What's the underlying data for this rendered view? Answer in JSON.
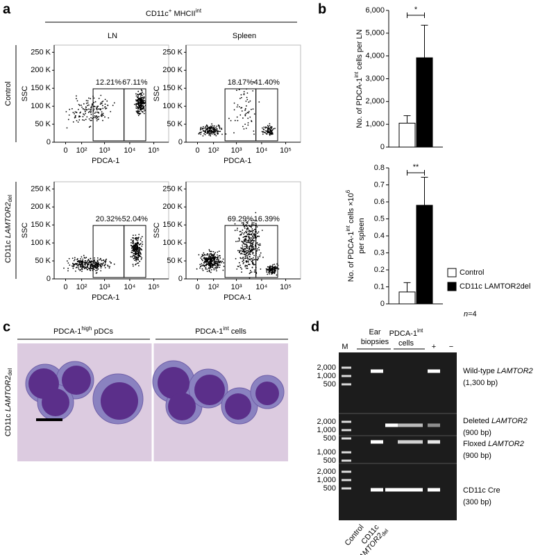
{
  "panel_a": {
    "letter": "a",
    "header": [
      {
        "t": "CD11c"
      },
      {
        "sup": "+"
      },
      {
        "t": " MHCII"
      },
      {
        "sup": "int"
      }
    ],
    "columns": [
      "LN",
      "Spleen"
    ],
    "rows": [
      [
        {
          "t": "Control"
        }
      ],
      [
        {
          "t": "CD11c "
        },
        {
          "i": "LAMTOR2"
        },
        {
          "sub": "del"
        }
      ]
    ],
    "ylabel": "SSC",
    "xlabel": "PDCA-1",
    "yticks": [
      "0",
      "50 K",
      "100 K",
      "150 K",
      "200 K",
      "250 K"
    ],
    "xticks": [
      "0",
      "10²",
      "10³",
      "10⁴",
      "10⁵"
    ],
    "gates": [
      [
        "12.21%",
        "67.11%"
      ],
      [
        "18.17%",
        "41.40%"
      ],
      [
        "20.32%",
        "52.04%"
      ],
      [
        "69.29%",
        "16.39%"
      ]
    ]
  },
  "panel_b": {
    "letter": "b",
    "note": [
      {
        "i": "n"
      },
      {
        "t": "=4"
      }
    ]
  },
  "chart_data": [
    {
      "type": "bar",
      "categories": [
        null
      ],
      "ylabel": [
        [
          {
            "t": "No. of PDCA-1"
          },
          {
            "sup": "int"
          },
          {
            "t": " cells per LN"
          }
        ]
      ],
      "ylim": [
        0,
        6000
      ],
      "yticks": [
        0,
        {
          "value": 1000,
          "label": "1,000"
        },
        {
          "value": 2000,
          "label": "2,000"
        },
        {
          "value": 3000,
          "label": "3,000"
        },
        {
          "value": 4000,
          "label": "4,000"
        },
        {
          "value": 5000,
          "label": "5,000"
        },
        {
          "value": 6000,
          "label": "6,000"
        }
      ],
      "series": [
        {
          "color": "#ffffff",
          "values": [
            1050
          ],
          "errors": [
            330
          ]
        },
        {
          "color": "#000000",
          "values": [
            3920
          ],
          "errors": [
            1430
          ]
        }
      ],
      "annotation": "*"
    },
    {
      "type": "bar",
      "categories": [
        null
      ],
      "ylabel": [
        [
          {
            "t": "No. of PDCA-1"
          },
          {
            "sup": "int"
          },
          {
            "t": " cells ×10"
          },
          {
            "sup": "6"
          }
        ],
        [
          {
            "t": "per spleen"
          }
        ]
      ],
      "ylim": [
        0,
        0.8
      ],
      "yticks": [
        0,
        0.1,
        0.2,
        0.3,
        0.4,
        0.5,
        0.6,
        0.7,
        0.8
      ],
      "series": [
        {
          "name": "Control",
          "color": "#ffffff",
          "values": [
            0.07
          ],
          "errors": [
            0.055
          ]
        },
        {
          "name": "CD11c LAMTOR2del",
          "color": "#000000",
          "values": [
            0.58
          ],
          "errors": [
            0.165
          ]
        }
      ],
      "annotation": "**",
      "legend": true
    }
  ],
  "panel_c": {
    "letter": "c",
    "titles": [
      [
        {
          "t": "PDCA-1"
        },
        {
          "sup": "high"
        },
        {
          "t": " pDCs"
        }
      ],
      [
        {
          "t": "PDCA-1"
        },
        {
          "sup": "int"
        },
        {
          "t": " cells"
        }
      ]
    ],
    "row": [
      {
        "t": "CD11c "
      },
      {
        "i": "LAMTOR2"
      },
      {
        "sub": "del"
      }
    ]
  },
  "panel_d": {
    "letter": "d",
    "marker": "M",
    "ear": [
      "Ear",
      "biopsies"
    ],
    "cells": [
      [
        {
          "t": "PDCA-1"
        },
        {
          "sup": "int"
        }
      ],
      [
        {
          "t": "cells"
        }
      ]
    ],
    "plus": "+",
    "minus": "−",
    "sections": [
      {
        "markers": [
          "2,000",
          "1,000",
          "500"
        ],
        "name": [
          {
            "t": "Wild-type "
          },
          {
            "i": "LAMTOR2"
          }
        ],
        "size": "(1,300 bp)"
      },
      {
        "markers": [
          "2,000",
          "1,000",
          "500"
        ],
        "name": [
          {
            "t": "Deleted "
          },
          {
            "i": "LAMTOR2"
          }
        ],
        "size": "(900 bp)"
      },
      {
        "markers": [
          "1,000",
          "500"
        ],
        "name": [
          {
            "t": "Floxed "
          },
          {
            "i": "LAMTOR2"
          }
        ],
        "size": "(900 bp)"
      },
      {
        "markers": [
          "2,000",
          "1,000",
          "500"
        ],
        "name": [
          {
            "t": "CD11c Cre"
          }
        ],
        "size": "(300 bp)"
      }
    ],
    "bottom": [
      [
        [
          {
            "t": "Control"
          }
        ]
      ],
      [
        [
          {
            "t": "CD11c"
          }
        ],
        [
          {
            "i": "LAMTOR2"
          },
          {
            "sub": "del"
          }
        ]
      ]
    ]
  }
}
